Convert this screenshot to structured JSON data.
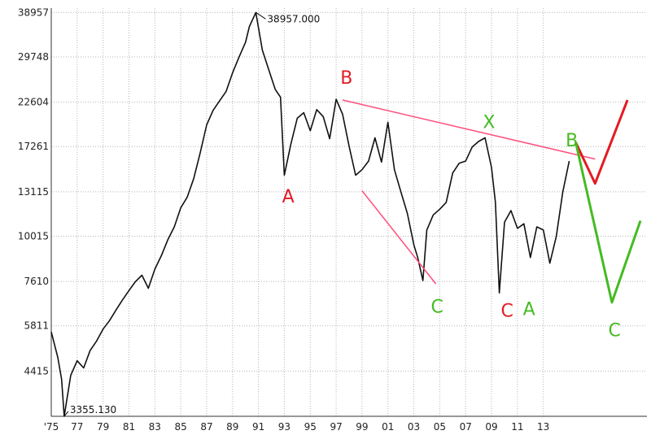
{
  "chart_data": {
    "type": "line",
    "title": "",
    "xlabel": "",
    "ylabel": "",
    "grid": true,
    "y_scale": "log",
    "xlim": [
      1975,
      2021
    ],
    "ylim": [
      3355.13,
      40000
    ],
    "x_tick_labels": [
      "'75",
      "77",
      "79",
      "81",
      "83",
      "85",
      "87",
      "89",
      "91",
      "93",
      "95",
      "97",
      "99",
      "01",
      "03",
      "05",
      "07",
      "09",
      "11",
      "13"
    ],
    "x_ticks": [
      1975,
      1977,
      1979,
      1981,
      1983,
      1985,
      1987,
      1989,
      1991,
      1993,
      1995,
      1997,
      1999,
      2001,
      2003,
      2005,
      2007,
      2009,
      2011,
      2013
    ],
    "y_tick_labels": [
      "38957",
      "29748",
      "22604",
      "17261",
      "13115",
      "10015",
      "7610",
      "5811",
      "4415"
    ],
    "y_ticks": [
      38957,
      29748,
      22604,
      17261,
      13115,
      10015,
      7610,
      5811,
      4415
    ],
    "series": [
      {
        "color": "#111111",
        "x": [
          1975.0,
          1975.5,
          1975.8,
          1976.0,
          1976.5,
          1977.0,
          1977.5,
          1978.0,
          1978.5,
          1979.0,
          1979.5,
          1980.0,
          1980.5,
          1981.0,
          1981.5,
          1982.0,
          1982.5,
          1983.0,
          1983.5,
          1984.0,
          1984.5,
          1985.0,
          1985.5,
          1986.0,
          1986.5,
          1987.0,
          1987.5,
          1988.0,
          1988.5,
          1989.0,
          1989.5,
          1990.0,
          1990.3,
          1990.8,
          1991.3,
          1991.8,
          1992.3,
          1992.7,
          1993.0,
          1993.5,
          1994.0,
          1994.5,
          1995.0,
          1995.5,
          1996.0,
          1996.5,
          1997.0,
          1997.5,
          1998.0,
          1998.5,
          1999.0,
          1999.5,
          2000.0,
          2000.5,
          2001.0,
          2001.5,
          2002.0,
          2002.5,
          2003.0,
          2003.3,
          2003.7,
          2004.0,
          2004.5,
          2005.0,
          2005.5,
          2006.0,
          2006.5,
          2007.0,
          2007.5,
          2008.0,
          2008.5,
          2009.0,
          2009.3,
          2009.6,
          2010.0,
          2010.5,
          2011.0,
          2011.5,
          2012.0,
          2012.5,
          2013.0,
          2013.5,
          2014.0,
          2014.5,
          2015.0
        ],
        "y": [
          5600,
          4800,
          4200,
          3355.13,
          4300,
          4700,
          4500,
          5000,
          5300,
          5700,
          6000,
          6400,
          6800,
          7200,
          7600,
          7900,
          7300,
          8200,
          8900,
          9800,
          10600,
          11900,
          12700,
          14200,
          16600,
          19700,
          21500,
          22800,
          24100,
          27000,
          29700,
          32500,
          35800,
          38957,
          31000,
          27500,
          24400,
          23300,
          14500,
          17500,
          20500,
          21200,
          19000,
          21600,
          20700,
          18100,
          23000,
          21000,
          17300,
          14500,
          15000,
          15800,
          18200,
          15700,
          20000,
          15000,
          13100,
          11500,
          9500,
          8800,
          7650,
          10400,
          11400,
          11800,
          12300,
          14700,
          15600,
          15800,
          17200,
          17800,
          18200,
          15200,
          12300,
          7100,
          10900,
          11700,
          10500,
          10800,
          8800,
          10600,
          10400,
          8500,
          10000,
          13100,
          15800
        ],
        "values_note": ""
      }
    ],
    "annotations": {
      "max_label": "38957.000",
      "min_label": "3355.130",
      "max_point": {
        "x": 1990.8,
        "y": 38957
      },
      "min_point": {
        "x": 1976.0,
        "y": 3355.13
      }
    },
    "trend_lines": [
      {
        "color": "#ff4f7d",
        "points": [
          {
            "x": 1997.5,
            "y": 22900
          },
          {
            "x": 2017.0,
            "y": 16000
          }
        ]
      },
      {
        "color": "#ff4f7d",
        "points": [
          {
            "x": 1999.0,
            "y": 13200
          },
          {
            "x": 2004.7,
            "y": 7500
          }
        ]
      }
    ],
    "projections": [
      {
        "color": "#e31b23",
        "points": [
          {
            "x": 2015.5,
            "y": 17700
          },
          {
            "x": 2017.0,
            "y": 13800
          },
          {
            "x": 2019.5,
            "y": 22900
          }
        ]
      },
      {
        "color": "#44bb22",
        "points": [
          {
            "x": 2015.5,
            "y": 17700
          },
          {
            "x": 2018.3,
            "y": 6700
          },
          {
            "x": 2020.5,
            "y": 11000
          }
        ]
      }
    ],
    "wave_labels": [
      {
        "text": "A",
        "color": "#e31b23",
        "x": 1993.3,
        "y": 12300
      },
      {
        "text": "B",
        "color": "#e31b23",
        "x": 1997.8,
        "y": 25300
      },
      {
        "text": "C",
        "color": "#44bb22",
        "x": 2004.8,
        "y": 6300
      },
      {
        "text": "X",
        "color": "#44bb22",
        "x": 2008.8,
        "y": 19300
      },
      {
        "text": "C",
        "color": "#e31b23",
        "x": 2010.2,
        "y": 6150
      },
      {
        "text": "A",
        "color": "#44bb22",
        "x": 2011.9,
        "y": 6200
      },
      {
        "text": "B",
        "color": "#44bb22",
        "x": 2015.2,
        "y": 17300
      },
      {
        "text": "C",
        "color": "#44bb22",
        "x": 2018.5,
        "y": 5450
      }
    ]
  }
}
